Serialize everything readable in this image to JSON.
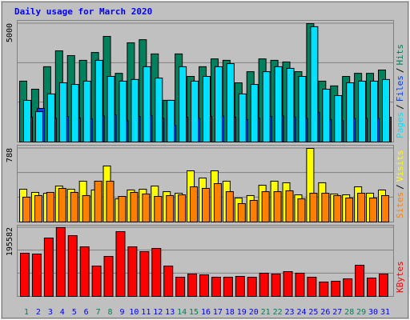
{
  "chart_data": [
    {
      "type": "bar",
      "title": "Daily usage for March 2020",
      "ylim": [
        0,
        5000
      ],
      "yticks": [
        5000
      ],
      "grid": true,
      "legend_separator": "/",
      "series": [
        {
          "name": "Hits",
          "color": "#00805c",
          "values": [
            2570,
            2230,
            3180,
            3850,
            3650,
            3450,
            3780,
            4460,
            2900,
            4190,
            4320,
            3720,
            1760,
            3720,
            2770,
            3180,
            3510,
            3450,
            2500,
            2970,
            3510,
            3450,
            3380,
            2970,
            5000,
            2570,
            2370,
            2770,
            2900,
            2900,
            3040
          ]
        },
        {
          "name": "Files",
          "color": "#0040ff",
          "values": [
            1050,
            1420,
            1000,
            1080,
            1020,
            980,
            1100,
            1150,
            900,
            1080,
            1120,
            1000,
            700,
            1050,
            1000,
            1080,
            1100,
            1050,
            950,
            1000,
            1080,
            1100,
            1050,
            1000,
            1250,
            950,
            900,
            1000,
            1000,
            1000,
            1050
          ]
        },
        {
          "name": "Pages",
          "color": "#00e0ff",
          "values": [
            1760,
            1280,
            2030,
            2500,
            2430,
            2570,
            3450,
            2770,
            2570,
            2640,
            3180,
            2700,
            1760,
            3180,
            2570,
            2770,
            3180,
            3310,
            2030,
            2430,
            2970,
            3180,
            3110,
            2770,
            4870,
            2230,
            1960,
            2500,
            2570,
            2570,
            2640
          ]
        }
      ]
    },
    {
      "type": "bar",
      "ylim": [
        0,
        788
      ],
      "yticks": [
        788
      ],
      "grid": true,
      "legend_separator": "/",
      "series": [
        {
          "name": "Visits",
          "color": "#ffff00",
          "values": [
            351,
            317,
            308,
            385,
            351,
            437,
            343,
            600,
            248,
            343,
            351,
            385,
            325,
            308,
            548,
            471,
            548,
            437,
            257,
            283,
            394,
            437,
            420,
            291,
            788,
            420,
            300,
            291,
            377,
            308,
            343
          ]
        },
        {
          "name": "Sites",
          "color": "#ff8000",
          "values": [
            266,
            283,
            317,
            360,
            317,
            283,
            437,
            437,
            274,
            317,
            300,
            274,
            283,
            291,
            377,
            360,
            411,
            325,
            197,
            231,
            325,
            325,
            334,
            248,
            308,
            308,
            283,
            257,
            308,
            257,
            283
          ]
        }
      ]
    },
    {
      "type": "bar",
      "ylim": [
        0,
        195582
      ],
      "yticks": [
        195582
      ],
      "grid": true,
      "categories": [
        "1",
        "2",
        "3",
        "4",
        "5",
        "6",
        "7",
        "8",
        "9",
        "10",
        "11",
        "12",
        "13",
        "14",
        "15",
        "16",
        "17",
        "18",
        "19",
        "20",
        "21",
        "22",
        "23",
        "24",
        "25",
        "26",
        "27",
        "28",
        "29",
        "30",
        "31"
      ],
      "category_colors": [
        "#00805c",
        "#0000ff",
        "#0000ff",
        "#0000ff",
        "#0000ff",
        "#0000ff",
        "#00805c",
        "#00805c",
        "#0000ff",
        "#0000ff",
        "#0000ff",
        "#0000ff",
        "#0000ff",
        "#00805c",
        "#00805c",
        "#0000ff",
        "#0000ff",
        "#0000ff",
        "#0000ff",
        "#0000ff",
        "#00805c",
        "#00805c",
        "#0000ff",
        "#0000ff",
        "#0000ff",
        "#0000ff",
        "#0000ff",
        "#00805c",
        "#00805c",
        "#0000ff",
        "#0000ff"
      ],
      "series": [
        {
          "name": "KBytes",
          "color": "#ff0000",
          "values": [
            122800,
            120500,
            166000,
            195582,
            172800,
            141000,
            86400,
            113700,
            184200,
            141000,
            127300,
            136400,
            86400,
            54600,
            63700,
            61400,
            54600,
            54600,
            56900,
            54600,
            65900,
            63700,
            70500,
            65900,
            54600,
            40900,
            43200,
            50000,
            88700,
            52300,
            63700
          ]
        }
      ]
    }
  ]
}
